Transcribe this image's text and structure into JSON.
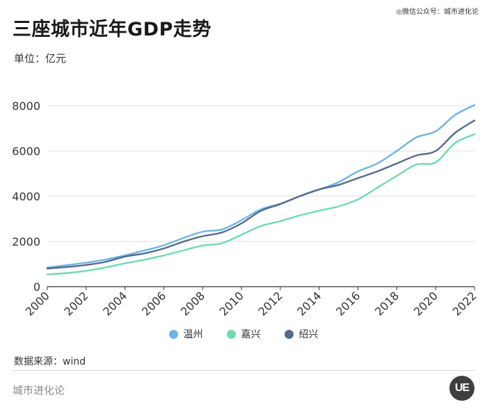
{
  "header": {
    "wechat_tag": "◎微信公众号：城市进化论",
    "title": "三座城市近年GDP走势",
    "unit": "单位：亿元"
  },
  "footer": {
    "source": "数据来源：wind",
    "brand": "城市进化论",
    "logo_text": "UE"
  },
  "colors": {
    "wenzhou": "#6cb4e6",
    "jiaxing": "#6ddab0",
    "shaoxing": "#566a8c",
    "grid": "#dddddd",
    "axis": "#333333"
  },
  "chart_data": {
    "type": "line",
    "title": "三座城市近年GDP走势",
    "ylabel": "单位：亿元",
    "xlabel": "",
    "ylim": [
      0,
      8000
    ],
    "yticks": [
      0,
      2000,
      4000,
      6000,
      8000
    ],
    "xticks": [
      "2000",
      "2002",
      "2004",
      "2006",
      "2008",
      "2010",
      "2012",
      "2014",
      "2016",
      "2018",
      "2020",
      "2022"
    ],
    "x": [
      2000,
      2001,
      2002,
      2003,
      2004,
      2005,
      2006,
      2007,
      2008,
      2009,
      2010,
      2011,
      2012,
      2013,
      2014,
      2015,
      2016,
      2017,
      2018,
      2019,
      2020,
      2021,
      2022
    ],
    "grid": "horizontal",
    "legend_position": "bottom-center",
    "series": [
      {
        "name": "温州",
        "color_key": "wenzhou",
        "values": [
          850,
          950,
          1060,
          1200,
          1380,
          1600,
          1830,
          2150,
          2430,
          2530,
          2940,
          3420,
          3670,
          4000,
          4300,
          4620,
          5100,
          5450,
          6000,
          6600,
          6870,
          7590,
          8030
        ]
      },
      {
        "name": "嘉兴",
        "color_key": "jiaxing",
        "values": [
          540,
          600,
          700,
          850,
          1030,
          1190,
          1380,
          1600,
          1820,
          1920,
          2300,
          2680,
          2900,
          3150,
          3360,
          3550,
          3860,
          4380,
          4900,
          5400,
          5500,
          6350,
          6740
        ]
      },
      {
        "name": "绍兴",
        "color_key": "shaoxing",
        "values": [
          800,
          870,
          960,
          1100,
          1330,
          1470,
          1690,
          1990,
          2230,
          2400,
          2800,
          3350,
          3650,
          4000,
          4300,
          4500,
          4800,
          5100,
          5450,
          5800,
          6000,
          6800,
          7350
        ]
      }
    ]
  }
}
